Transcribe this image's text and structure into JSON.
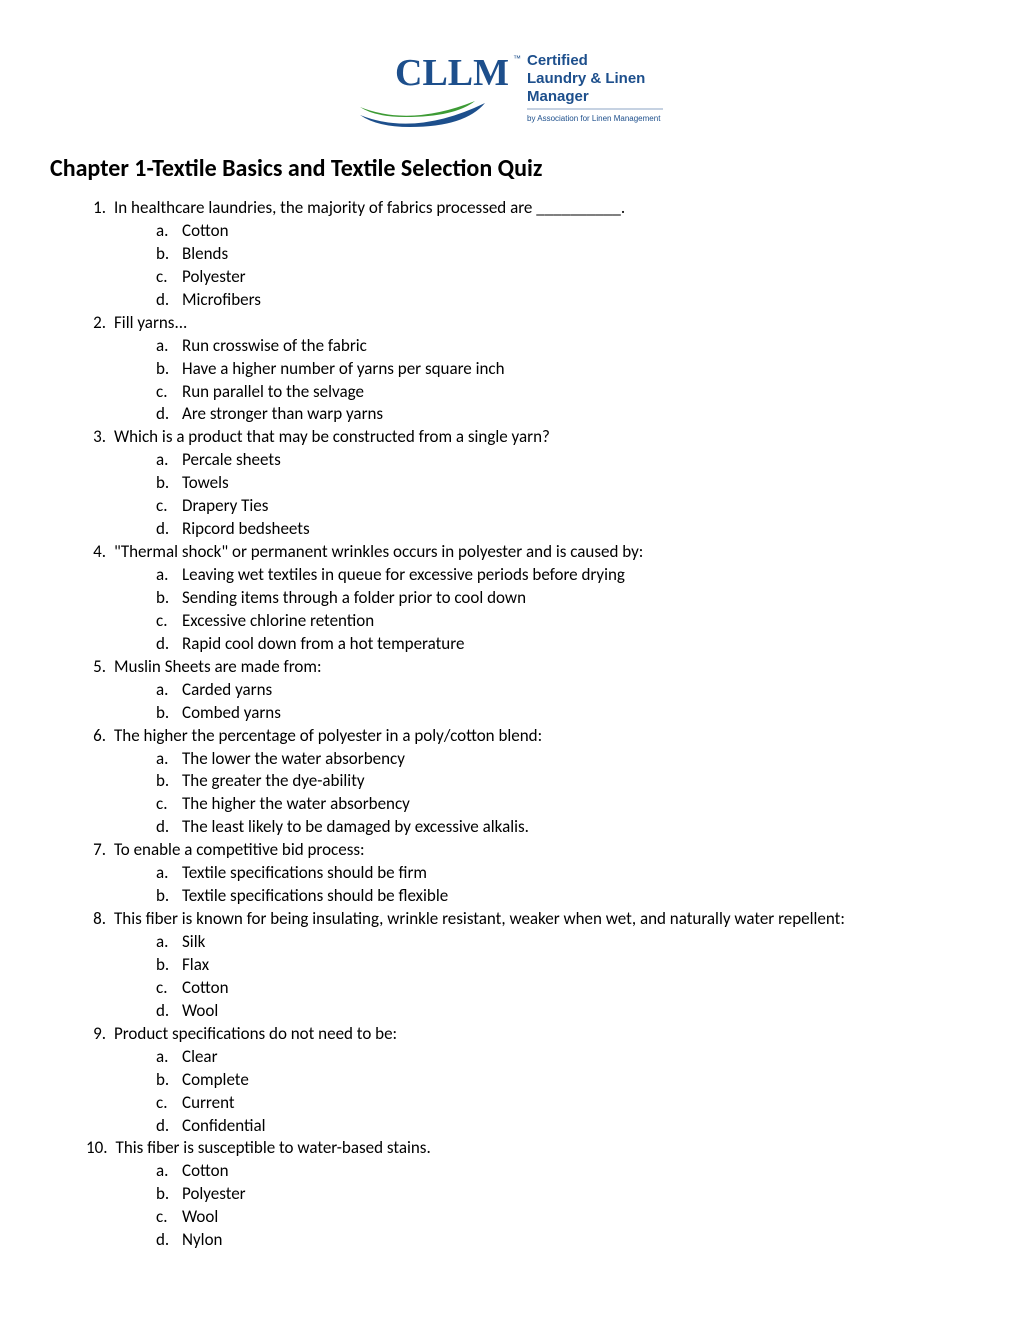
{
  "logo": {
    "acronym": "CLLM",
    "tm": "™",
    "title_line1": "Certified",
    "title_line2": "Laundry & Linen",
    "title_line3": "Manager",
    "byline": "by Association for Linen Management",
    "colors": {
      "text_blue": "#1d4f8c",
      "swoosh_blue": "#1d4f8c",
      "swoosh_green": "#3d9b35"
    }
  },
  "title": "Chapter 1-Textile Basics and Textile Selection Quiz",
  "questions": [
    {
      "num": "1.",
      "text": "In healthcare laundries, the majority of fabrics processed are __________.",
      "options": [
        {
          "let": "a.",
          "text": "Cotton"
        },
        {
          "let": "b.",
          "text": "Blends"
        },
        {
          "let": "c.",
          "text": "Polyester"
        },
        {
          "let": "d.",
          "text": "Microfibers"
        }
      ]
    },
    {
      "num": "2.",
      "text": "Fill yarns...",
      "options": [
        {
          "let": "a.",
          "text": "Run crosswise of the fabric"
        },
        {
          "let": "b.",
          "text": "Have a higher number of yarns per square inch"
        },
        {
          "let": "c.",
          "text": "Run parallel to the selvage"
        },
        {
          "let": "d.",
          "text": "Are stronger than warp yarns"
        }
      ]
    },
    {
      "num": "3.",
      "text": "Which is a product that may be constructed from a single yarn?",
      "options": [
        {
          "let": "a.",
          "text": "Percale sheets"
        },
        {
          "let": "b.",
          "text": "Towels"
        },
        {
          "let": "c.",
          "text": "Drapery Ties"
        },
        {
          "let": "d.",
          "text": "Ripcord bedsheets"
        }
      ]
    },
    {
      "num": "4.",
      "text": "\"Thermal shock\" or permanent wrinkles occurs in polyester and is caused by:",
      "options": [
        {
          "let": "a.",
          "text": "Leaving wet textiles in queue for excessive periods before drying"
        },
        {
          "let": "b.",
          "text": "Sending items through a folder prior to cool down"
        },
        {
          "let": "c.",
          "text": "Excessive chlorine retention"
        },
        {
          "let": "d.",
          "text": "Rapid cool down from a hot temperature"
        }
      ]
    },
    {
      "num": "5.",
      "text": "Muslin Sheets are made from:",
      "options": [
        {
          "let": "a.",
          "text": "Carded yarns"
        },
        {
          "let": "b.",
          "text": "Combed yarns"
        }
      ]
    },
    {
      "num": "6.",
      "text": "The higher the percentage of polyester in a poly/cotton blend:",
      "options": [
        {
          "let": "a.",
          "text": "The lower the water absorbency"
        },
        {
          "let": "b.",
          "text": "The greater the dye-ability"
        },
        {
          "let": "c.",
          "text": "The higher the water absorbency"
        },
        {
          "let": "d.",
          "text": "The least likely to be damaged by excessive alkalis."
        }
      ]
    },
    {
      "num": "7.",
      "text": "To enable a competitive bid process:",
      "options": [
        {
          "let": "a.",
          "text": "Textile specifications should be firm"
        },
        {
          "let": "b.",
          "text": "Textile specifications should be flexible"
        }
      ]
    },
    {
      "num": "8.",
      "text": "This fiber is known for being insulating, wrinkle resistant, weaker when wet, and naturally water repellent:",
      "options": [
        {
          "let": "a.",
          "text": "Silk"
        },
        {
          "let": "b.",
          "text": "Flax"
        },
        {
          "let": "c.",
          "text": "Cotton"
        },
        {
          "let": "d.",
          "text": "Wool"
        }
      ]
    },
    {
      "num": "9.",
      "text": "Product specifications do not  need to be:",
      "options": [
        {
          "let": "a.",
          "text": "Clear"
        },
        {
          "let": "b.",
          "text": "Complete"
        },
        {
          "let": "c.",
          "text": "Current"
        },
        {
          "let": "d.",
          "text": "Confidential"
        }
      ]
    },
    {
      "num": "10.",
      "text": "This fiber is susceptible to water-based stains.",
      "options": [
        {
          "let": "a.",
          "text": "Cotton"
        },
        {
          "let": "b.",
          "text": "Polyester"
        },
        {
          "let": "c.",
          "text": "Wool"
        },
        {
          "let": "d.",
          "text": "Nylon"
        }
      ]
    }
  ]
}
